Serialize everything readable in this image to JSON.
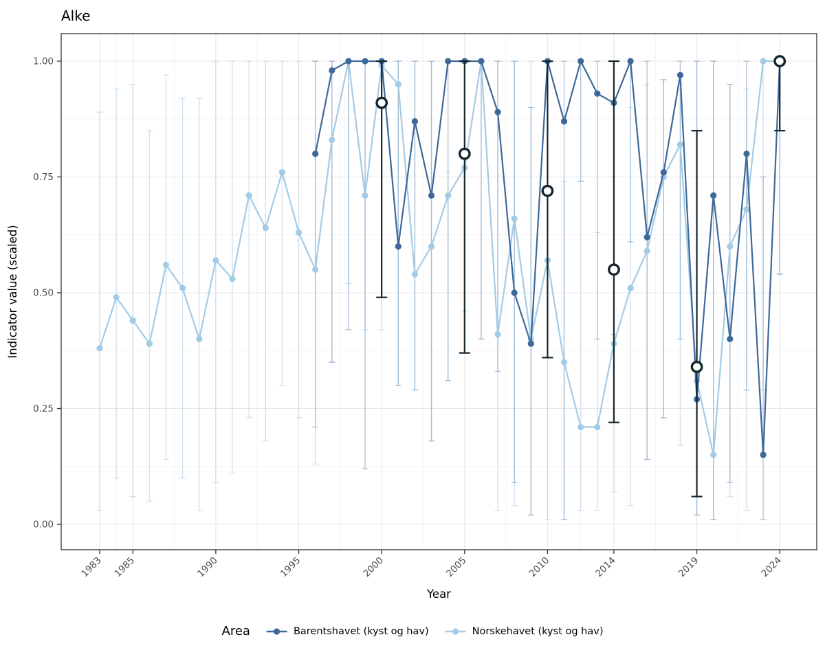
{
  "chart_data": {
    "type": "line",
    "title": "Alke",
    "xlabel": "Year",
    "ylabel": "Indicator value (scaled)",
    "legend_title": "Area",
    "x_ticks": [
      1983,
      1985,
      1990,
      1995,
      2000,
      2005,
      2010,
      2014,
      2019,
      2024
    ],
    "y_ticks": [
      {
        "label": "1.00",
        "value": 1.0
      },
      {
        "label": "0.75",
        "value": 0.75
      },
      {
        "label": "0.50",
        "value": 0.5
      },
      {
        "label": "0.25",
        "value": 0.25
      },
      {
        "label": "0.00",
        "value": 0.0
      }
    ],
    "xlim": [
      1980.7,
      2026.3
    ],
    "ylim": [
      -0.055,
      1.06
    ],
    "grid": true,
    "legend_position": "bottom",
    "series": [
      {
        "name": "Norskehavet (kyst og hav)",
        "color": "#a3cbe6",
        "errorbar_color": "#b9d5ea",
        "points": [
          {
            "year": 1983,
            "value": 0.38,
            "lo": 0.03,
            "hi": 0.89
          },
          {
            "year": 1984,
            "value": 0.49,
            "lo": 0.1,
            "hi": 0.94
          },
          {
            "year": 1985,
            "value": 0.44,
            "lo": 0.06,
            "hi": 0.95
          },
          {
            "year": 1986,
            "value": 0.39,
            "lo": 0.05,
            "hi": 0.85
          },
          {
            "year": 1987,
            "value": 0.56,
            "lo": 0.14,
            "hi": 0.97
          },
          {
            "year": 1988,
            "value": 0.51,
            "lo": 0.1,
            "hi": 0.92
          },
          {
            "year": 1989,
            "value": 0.4,
            "lo": 0.03,
            "hi": 0.92
          },
          {
            "year": 1990,
            "value": 0.57,
            "lo": 0.09,
            "hi": 1.0
          },
          {
            "year": 1991,
            "value": 0.53,
            "lo": 0.11,
            "hi": 1.0
          },
          {
            "year": 1992,
            "value": 0.71,
            "lo": 0.23,
            "hi": 1.0
          },
          {
            "year": 1993,
            "value": 0.64,
            "lo": 0.18,
            "hi": 1.0
          },
          {
            "year": 1994,
            "value": 0.76,
            "lo": 0.3,
            "hi": 1.0
          },
          {
            "year": 1995,
            "value": 0.63,
            "lo": 0.23,
            "hi": 1.0
          },
          {
            "year": 1996,
            "value": 0.55,
            "lo": 0.13,
            "hi": 1.0
          },
          {
            "year": 1997,
            "value": 0.83,
            "lo": 0.35,
            "hi": 1.0
          },
          {
            "year": 1998,
            "value": 1.0,
            "lo": 0.52,
            "hi": 1.0
          },
          {
            "year": 1999,
            "value": 0.71,
            "lo": 0.42,
            "hi": 1.0
          },
          {
            "year": 2000,
            "value": 0.99,
            "lo": 0.42,
            "hi": 1.0
          },
          {
            "year": 2001,
            "value": 0.95,
            "lo": 0.3,
            "hi": 1.0
          },
          {
            "year": 2002,
            "value": 0.54,
            "lo": 0.29,
            "hi": 1.0
          },
          {
            "year": 2003,
            "value": 0.6,
            "lo": 0.18,
            "hi": 1.0
          },
          {
            "year": 2004,
            "value": 0.71,
            "lo": 0.31,
            "hi": 0.76
          },
          {
            "year": 2005,
            "value": 0.77,
            "lo": 0.46,
            "hi": 1.0
          },
          {
            "year": 2006,
            "value": 1.0,
            "lo": 0.4,
            "hi": 1.0
          },
          {
            "year": 2007,
            "value": 0.41,
            "lo": 0.03,
            "hi": 1.0
          },
          {
            "year": 2008,
            "value": 0.66,
            "lo": 0.04,
            "hi": 1.0
          },
          {
            "year": 2009,
            "value": 0.4,
            "lo": 0.02,
            "hi": 1.0
          },
          {
            "year": 2010,
            "value": 0.57,
            "lo": 0.01,
            "hi": 1.0
          },
          {
            "year": 2011,
            "value": 0.35,
            "lo": 0.01,
            "hi": 0.74
          },
          {
            "year": 2012,
            "value": 0.21,
            "lo": 0.03,
            "hi": 0.74
          },
          {
            "year": 2013,
            "value": 0.21,
            "lo": 0.03,
            "hi": 0.63
          },
          {
            "year": 2014,
            "value": 0.39,
            "lo": 0.07,
            "hi": 0.75
          },
          {
            "year": 2015,
            "value": 0.51,
            "lo": 0.04,
            "hi": 0.9
          },
          {
            "year": 2016,
            "value": 0.59,
            "lo": 0.14,
            "hi": 0.95
          },
          {
            "year": 2017,
            "value": 0.75,
            "lo": 0.23,
            "hi": 0.96
          },
          {
            "year": 2018,
            "value": 0.82,
            "lo": 0.17,
            "hi": 0.95
          },
          {
            "year": 2019,
            "value": 0.31,
            "lo": 0.02,
            "hi": 1.0
          },
          {
            "year": 2020,
            "value": 0.15,
            "lo": 0.01,
            "hi": 1.0
          },
          {
            "year": 2021,
            "value": 0.6,
            "lo": 0.06,
            "hi": 0.95
          },
          {
            "year": 2022,
            "value": 0.68,
            "lo": 0.03,
            "hi": 0.94
          },
          {
            "year": 2023,
            "value": 1.0,
            "lo": 0.29,
            "hi": 1.0
          },
          {
            "year": 2024,
            "value": 1.0,
            "lo": 0.54,
            "hi": 1.0
          }
        ]
      },
      {
        "name": "Barentshavet (kyst og hav)",
        "color": "#3d6899",
        "errorbar_color": "#8aa9c9",
        "points": [
          {
            "year": 1996,
            "value": 0.8,
            "lo": 0.21,
            "hi": 1.0
          },
          {
            "year": 1997,
            "value": 0.98,
            "lo": 0.35,
            "hi": 1.0
          },
          {
            "year": 1998,
            "value": 1.0,
            "lo": 0.42,
            "hi": 1.0
          },
          {
            "year": 1999,
            "value": 1.0,
            "lo": 0.12,
            "hi": 1.0
          },
          {
            "year": 2000,
            "value": 1.0,
            "lo": 0.49,
            "hi": 1.0
          },
          {
            "year": 2001,
            "value": 0.6,
            "lo": 0.3,
            "hi": 1.0
          },
          {
            "year": 2002,
            "value": 0.87,
            "lo": 0.29,
            "hi": 1.0
          },
          {
            "year": 2003,
            "value": 0.71,
            "lo": 0.18,
            "hi": 1.0
          },
          {
            "year": 2004,
            "value": 1.0,
            "lo": 0.31,
            "hi": 1.0
          },
          {
            "year": 2005,
            "value": 1.0,
            "lo": 0.37,
            "hi": 1.0
          },
          {
            "year": 2006,
            "value": 1.0,
            "lo": 0.4,
            "hi": 1.0
          },
          {
            "year": 2007,
            "value": 0.89,
            "lo": 0.33,
            "hi": 1.0
          },
          {
            "year": 2008,
            "value": 0.5,
            "lo": 0.09,
            "hi": 1.0
          },
          {
            "year": 2009,
            "value": 0.39,
            "lo": 0.02,
            "hi": 0.9
          },
          {
            "year": 2010,
            "value": 1.0,
            "lo": 0.36,
            "hi": 1.0
          },
          {
            "year": 2011,
            "value": 0.87,
            "lo": 0.01,
            "hi": 1.0
          },
          {
            "year": 2012,
            "value": 1.0,
            "lo": 0.74,
            "hi": 1.0
          },
          {
            "year": 2013,
            "value": 0.93,
            "lo": 0.4,
            "hi": 1.0
          },
          {
            "year": 2014,
            "value": 0.91,
            "lo": 0.41,
            "hi": 1.0
          },
          {
            "year": 2015,
            "value": 1.0,
            "lo": 0.61,
            "hi": 1.0
          },
          {
            "year": 2016,
            "value": 0.62,
            "lo": 0.14,
            "hi": 1.0
          },
          {
            "year": 2017,
            "value": 0.76,
            "lo": 0.23,
            "hi": 0.96
          },
          {
            "year": 2018,
            "value": 0.97,
            "lo": 0.4,
            "hi": 1.0
          },
          {
            "year": 2019,
            "value": 0.27,
            "lo": 0.02,
            "hi": 1.0
          },
          {
            "year": 2020,
            "value": 0.71,
            "lo": 0.01,
            "hi": 1.0
          },
          {
            "year": 2021,
            "value": 0.4,
            "lo": 0.09,
            "hi": 0.95
          },
          {
            "year": 2022,
            "value": 0.8,
            "lo": 0.29,
            "hi": 1.0
          },
          {
            "year": 2023,
            "value": 0.15,
            "lo": 0.01,
            "hi": 0.75
          },
          {
            "year": 2024,
            "value": 1.0,
            "lo": 0.54,
            "hi": 1.0
          }
        ]
      }
    ],
    "reference_points": {
      "name": "assessment-points",
      "color": "#15262b",
      "points": [
        {
          "year": 2000,
          "value": 0.91,
          "lo": 0.49,
          "hi": 1.0
        },
        {
          "year": 2005,
          "value": 0.8,
          "lo": 0.37,
          "hi": 1.0
        },
        {
          "year": 2010,
          "value": 0.72,
          "lo": 0.36,
          "hi": 1.0
        },
        {
          "year": 2014,
          "value": 0.55,
          "lo": 0.22,
          "hi": 1.0
        },
        {
          "year": 2019,
          "value": 0.34,
          "lo": 0.06,
          "hi": 0.85
        },
        {
          "year": 2024,
          "value": 1.0,
          "lo": 0.85,
          "hi": 1.0
        }
      ]
    },
    "colors": {
      "grid_major": "#e7e7e7",
      "grid_minor": "#f3f3f3",
      "panel_border": "#333333",
      "tick": "#333333",
      "tick_label": "#4d4d4d",
      "text": "#000000"
    }
  },
  "legend": {
    "title": "Area",
    "items": [
      {
        "label": "Barentshavet (kyst og hav)",
        "color": "#3d6899"
      },
      {
        "label": "Norskehavet (kyst og hav)",
        "color": "#a3cbe6"
      }
    ]
  }
}
